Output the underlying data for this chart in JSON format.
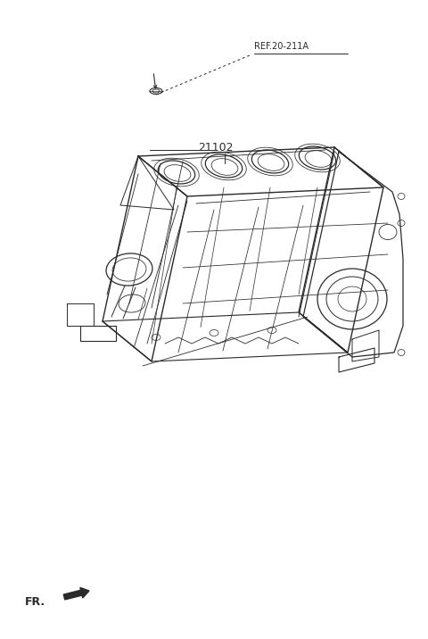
{
  "bg_color": "#ffffff",
  "line_color": "#2a2a2a",
  "fig_width": 4.8,
  "fig_height": 7.16,
  "dpi": 100,
  "ref_label": "REF.20-211A",
  "part_label": "21102",
  "fr_label": "FR."
}
